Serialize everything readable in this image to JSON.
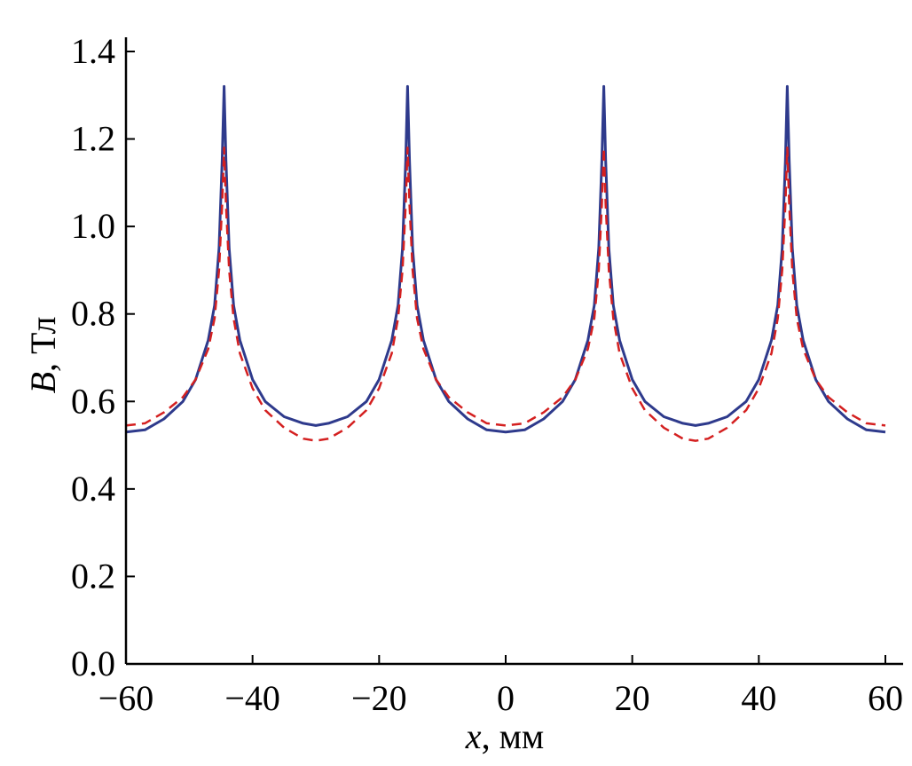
{
  "chart_data": {
    "type": "line",
    "xlabel_var": "x",
    "xlabel_unit": ", мм",
    "ylabel_var": "B",
    "ylabel_unit": ", Тл",
    "xlim": [
      -60,
      60
    ],
    "ylim": [
      0,
      1.4
    ],
    "x_ticks": [
      -60,
      -40,
      -20,
      0,
      20,
      40,
      60
    ],
    "x_tick_labels": [
      "−60",
      "−40",
      "−20",
      "0",
      "20",
      "40",
      "60"
    ],
    "y_ticks": [
      0,
      0.2,
      0.4,
      0.6,
      0.8,
      1.0,
      1.2,
      1.4
    ],
    "y_tick_labels": [
      "0.0",
      "0.2",
      "0.4",
      "0.6",
      "0.8",
      "1.0",
      "1.2",
      "1.4"
    ],
    "grid": false,
    "series": [
      {
        "color": "#2e3a8c",
        "style": "solid",
        "points": [
          [
            -60,
            0.53
          ],
          [
            -57,
            0.535
          ],
          [
            -54,
            0.56
          ],
          [
            -51,
            0.6
          ],
          [
            -49,
            0.65
          ],
          [
            -47,
            0.74
          ],
          [
            -46,
            0.82
          ],
          [
            -45.3,
            0.95
          ],
          [
            -44.8,
            1.15
          ],
          [
            -44.5,
            1.32
          ],
          [
            -44.2,
            1.15
          ],
          [
            -43.7,
            0.95
          ],
          [
            -43,
            0.82
          ],
          [
            -42,
            0.74
          ],
          [
            -40,
            0.65
          ],
          [
            -38,
            0.6
          ],
          [
            -35,
            0.565
          ],
          [
            -32,
            0.55
          ],
          [
            -30,
            0.545
          ],
          [
            -28,
            0.55
          ],
          [
            -25,
            0.565
          ],
          [
            -22,
            0.6
          ],
          [
            -20,
            0.65
          ],
          [
            -18,
            0.74
          ],
          [
            -17,
            0.82
          ],
          [
            -16.3,
            0.95
          ],
          [
            -15.8,
            1.15
          ],
          [
            -15.5,
            1.32
          ],
          [
            -15.2,
            1.15
          ],
          [
            -14.7,
            0.95
          ],
          [
            -14,
            0.82
          ],
          [
            -13,
            0.74
          ],
          [
            -11,
            0.65
          ],
          [
            -9,
            0.6
          ],
          [
            -6,
            0.56
          ],
          [
            -3,
            0.535
          ],
          [
            0,
            0.53
          ],
          [
            3,
            0.535
          ],
          [
            6,
            0.56
          ],
          [
            9,
            0.6
          ],
          [
            11,
            0.65
          ],
          [
            13,
            0.74
          ],
          [
            14,
            0.82
          ],
          [
            14.7,
            0.95
          ],
          [
            15.2,
            1.15
          ],
          [
            15.5,
            1.32
          ],
          [
            15.8,
            1.15
          ],
          [
            16.3,
            0.95
          ],
          [
            17,
            0.82
          ],
          [
            18,
            0.74
          ],
          [
            20,
            0.65
          ],
          [
            22,
            0.6
          ],
          [
            25,
            0.565
          ],
          [
            28,
            0.55
          ],
          [
            30,
            0.545
          ],
          [
            32,
            0.55
          ],
          [
            35,
            0.565
          ],
          [
            38,
            0.6
          ],
          [
            40,
            0.65
          ],
          [
            42,
            0.74
          ],
          [
            43,
            0.82
          ],
          [
            43.7,
            0.95
          ],
          [
            44.2,
            1.15
          ],
          [
            44.5,
            1.32
          ],
          [
            44.8,
            1.15
          ],
          [
            45.3,
            0.95
          ],
          [
            46,
            0.82
          ],
          [
            47,
            0.74
          ],
          [
            49,
            0.65
          ],
          [
            51,
            0.6
          ],
          [
            54,
            0.56
          ],
          [
            57,
            0.535
          ],
          [
            60,
            0.53
          ]
        ]
      },
      {
        "color": "#d42020",
        "style": "dashed",
        "points": [
          [
            -60,
            0.545
          ],
          [
            -57,
            0.55
          ],
          [
            -54,
            0.575
          ],
          [
            -51,
            0.61
          ],
          [
            -49,
            0.65
          ],
          [
            -47,
            0.72
          ],
          [
            -46,
            0.79
          ],
          [
            -45.3,
            0.9
          ],
          [
            -44.8,
            1.05
          ],
          [
            -44.5,
            1.18
          ],
          [
            -44.2,
            1.05
          ],
          [
            -43.7,
            0.9
          ],
          [
            -43,
            0.79
          ],
          [
            -42,
            0.71
          ],
          [
            -40,
            0.63
          ],
          [
            -38,
            0.58
          ],
          [
            -35,
            0.54
          ],
          [
            -32,
            0.515
          ],
          [
            -30,
            0.51
          ],
          [
            -28,
            0.515
          ],
          [
            -25,
            0.54
          ],
          [
            -22,
            0.58
          ],
          [
            -20,
            0.63
          ],
          [
            -18,
            0.71
          ],
          [
            -17,
            0.79
          ],
          [
            -16.3,
            0.9
          ],
          [
            -15.8,
            1.05
          ],
          [
            -15.5,
            1.18
          ],
          [
            -15.2,
            1.05
          ],
          [
            -14.7,
            0.9
          ],
          [
            -14,
            0.79
          ],
          [
            -13,
            0.72
          ],
          [
            -11,
            0.65
          ],
          [
            -9,
            0.61
          ],
          [
            -6,
            0.575
          ],
          [
            -3,
            0.55
          ],
          [
            0,
            0.545
          ],
          [
            3,
            0.55
          ],
          [
            6,
            0.575
          ],
          [
            9,
            0.61
          ],
          [
            11,
            0.65
          ],
          [
            13,
            0.72
          ],
          [
            14,
            0.79
          ],
          [
            14.7,
            0.9
          ],
          [
            15.2,
            1.05
          ],
          [
            15.5,
            1.18
          ],
          [
            15.8,
            1.05
          ],
          [
            16.3,
            0.9
          ],
          [
            17,
            0.79
          ],
          [
            18,
            0.71
          ],
          [
            20,
            0.63
          ],
          [
            22,
            0.58
          ],
          [
            25,
            0.54
          ],
          [
            28,
            0.515
          ],
          [
            30,
            0.51
          ],
          [
            32,
            0.515
          ],
          [
            35,
            0.54
          ],
          [
            38,
            0.58
          ],
          [
            40,
            0.63
          ],
          [
            42,
            0.71
          ],
          [
            43,
            0.79
          ],
          [
            43.7,
            0.9
          ],
          [
            44.2,
            1.05
          ],
          [
            44.5,
            1.18
          ],
          [
            44.8,
            1.05
          ],
          [
            45.3,
            0.9
          ],
          [
            46,
            0.79
          ],
          [
            47,
            0.72
          ],
          [
            49,
            0.65
          ],
          [
            51,
            0.61
          ],
          [
            54,
            0.575
          ],
          [
            57,
            0.55
          ],
          [
            60,
            0.545
          ]
        ]
      }
    ]
  }
}
